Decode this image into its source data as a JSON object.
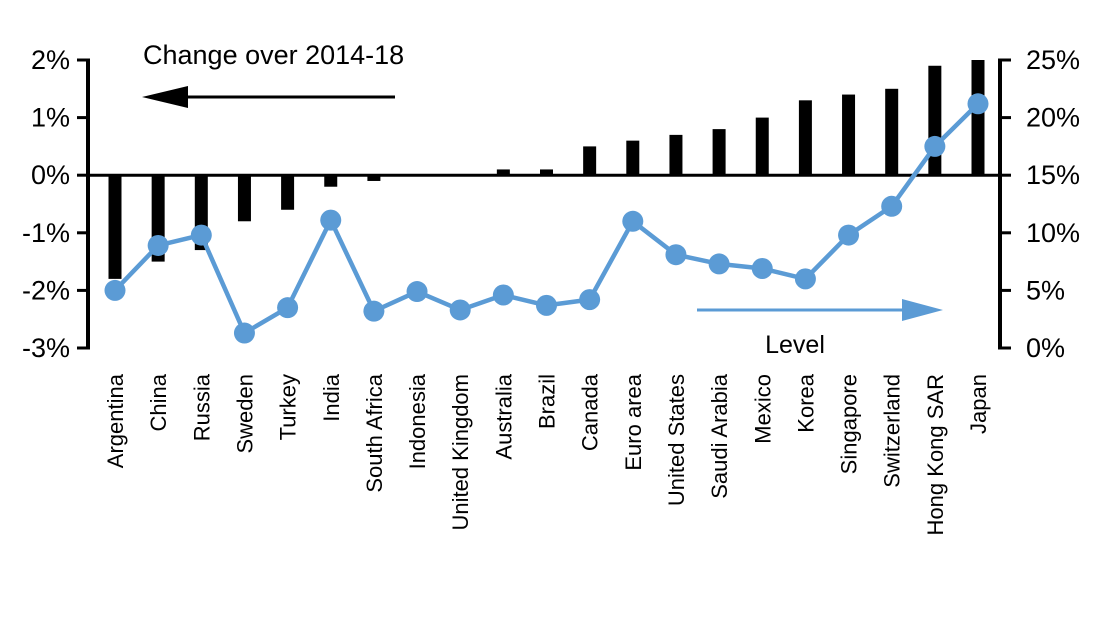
{
  "chart_data": {
    "type": "bar",
    "subtype": "combo-bar-line-dual-axis",
    "title": "",
    "categories": [
      "Argentina",
      "China",
      "Russia",
      "Sweden",
      "Turkey",
      "India",
      "South Africa",
      "Indonesia",
      "United Kingdom",
      "Australia",
      "Brazil",
      "Canada",
      "Euro area",
      "United States",
      "Saudi Arabia",
      "Mexico",
      "Korea",
      "Singapore",
      "Switzerland",
      "Hong Kong SAR",
      "Japan"
    ],
    "series": [
      {
        "name": "Change over 2014-18",
        "type": "bar",
        "axis": "left",
        "color": "#000000",
        "values": [
          -1.8,
          -1.5,
          -1.3,
          -0.8,
          -0.6,
          -0.2,
          -0.1,
          0.0,
          0.0,
          0.1,
          0.1,
          0.5,
          0.6,
          0.7,
          0.8,
          1.0,
          1.3,
          1.4,
          1.5,
          1.9,
          2.0
        ]
      },
      {
        "name": "Level",
        "type": "line",
        "axis": "right",
        "color": "#5B9BD5",
        "values": [
          5.0,
          8.9,
          9.8,
          1.3,
          3.5,
          11.1,
          3.2,
          4.9,
          3.3,
          4.6,
          3.7,
          4.2,
          11.0,
          8.1,
          7.3,
          6.9,
          6.0,
          9.8,
          12.3,
          17.5,
          21.2
        ]
      }
    ],
    "left_axis": {
      "min": -3,
      "max": 2,
      "tick_values": [
        2,
        1,
        0,
        -1,
        -2,
        -3
      ],
      "tick_labels": [
        "2%",
        "1%",
        "0%",
        "-1%",
        "-2%",
        "-3%"
      ]
    },
    "right_axis": {
      "min": 0,
      "max": 25,
      "tick_values": [
        25,
        20,
        15,
        10,
        5,
        0
      ],
      "tick_labels": [
        "25%",
        "20%",
        "15%",
        "10%",
        "5%",
        "0%"
      ]
    },
    "annotations": {
      "bar_label": "Change over 2014-18",
      "line_label": "Level"
    },
    "grid": false,
    "legend_position": "arrows-in-plot"
  },
  "colors": {
    "bar": "#000000",
    "line": "#5B9BD5",
    "text": "#000000",
    "background": "#FFFFFF"
  }
}
